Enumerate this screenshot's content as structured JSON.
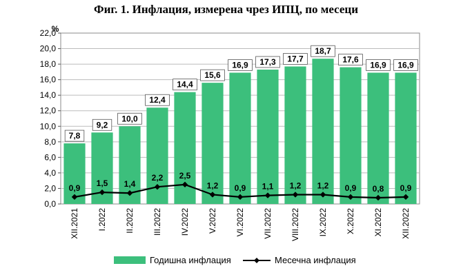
{
  "title": "Фиг. 1. Инфлация, измерена чрез ИПЦ, по месеци",
  "chart_data": {
    "type": "bar",
    "title": "Фиг. 1. Инфлация, измерена чрез ИПЦ, по месеци",
    "ylabel": "%",
    "ylim": [
      0,
      22
    ],
    "ytick_step": 2,
    "ytick_labels": [
      "0,0",
      "2,0",
      "4,0",
      "6,0",
      "8,0",
      "10,0",
      "12,0",
      "14,0",
      "16,0",
      "18,0",
      "20,0",
      "22,0"
    ],
    "categories": [
      "XII.2021",
      "I.2022",
      "II.2022",
      "III.2022",
      "IV.2022",
      "V.2022",
      "VI.2022",
      "VII.2022",
      "VIII.2022",
      "IX.2022",
      "X.2022",
      "XI.2022",
      "XII.2022"
    ],
    "series": [
      {
        "name": "Годишна инфлация",
        "type": "bar",
        "color": "#3cbf7c",
        "values": [
          7.8,
          9.2,
          10.0,
          12.4,
          14.4,
          15.6,
          16.9,
          17.3,
          17.7,
          18.7,
          17.6,
          16.9,
          16.9
        ],
        "labels": [
          "7,8",
          "9,2",
          "10,0",
          "12,4",
          "14,4",
          "15,6",
          "16,9",
          "17,3",
          "17,7",
          "18,7",
          "17,6",
          "16,9",
          "16,9"
        ]
      },
      {
        "name": "Месечна инфлация",
        "type": "line",
        "color": "#000000",
        "values": [
          0.9,
          1.5,
          1.4,
          2.2,
          2.5,
          1.2,
          0.9,
          1.1,
          1.2,
          1.2,
          0.9,
          0.8,
          0.9
        ],
        "labels": [
          "0,9",
          "1,5",
          "1,4",
          "2,2",
          "2,5",
          "1,2",
          "0,9",
          "1,1",
          "1,2",
          "1,2",
          "0,9",
          "0,8",
          "0,9"
        ]
      }
    ],
    "grid": true,
    "legend_position": "bottom"
  }
}
